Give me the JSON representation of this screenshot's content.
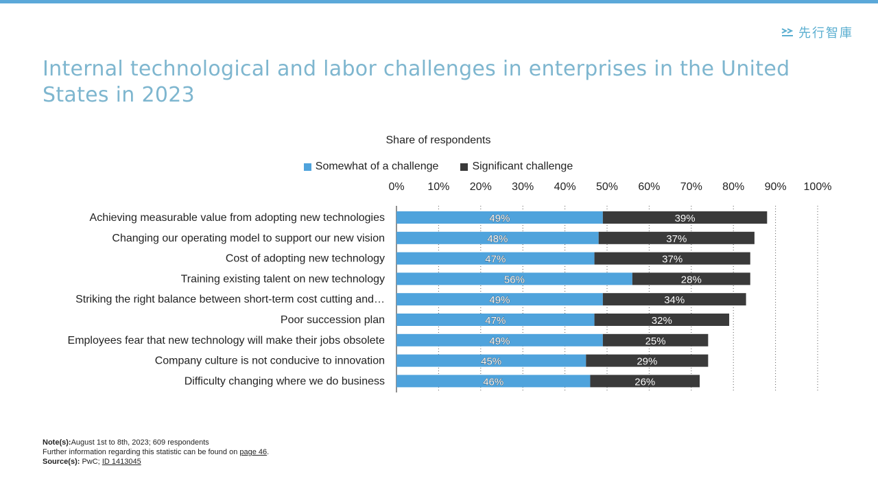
{
  "brand": {
    "logo_text": "先行智庫",
    "accent": "#5ba8d9"
  },
  "title": "Internal technological and labor challenges in enterprises in the United States in 2023",
  "chart_data": {
    "type": "bar",
    "orientation": "horizontal",
    "stacked": true,
    "title": "Share of respondents",
    "xlim": [
      0,
      100
    ],
    "x_ticks": [
      "0%",
      "10%",
      "20%",
      "30%",
      "40%",
      "50%",
      "60%",
      "70%",
      "80%",
      "90%",
      "100%"
    ],
    "grid": "vertical dotted",
    "legend_position": "top",
    "categories": [
      "Achieving measurable value from adopting new technologies",
      "Changing our operating model to support our new vision",
      "Cost of adopting new technology",
      "Training existing talent on new technology",
      "Striking the right balance between short-term cost cutting and…",
      "Poor succession plan",
      "Employees fear that new technology will make their jobs obsolete",
      "Company culture is not conducive to innovation",
      "Difficulty changing where we do business"
    ],
    "series": [
      {
        "name": "Somewhat of a challenge",
        "color": "#4fa3dc",
        "values": [
          49,
          48,
          47,
          56,
          49,
          47,
          49,
          45,
          46
        ]
      },
      {
        "name": "Significant challenge",
        "color": "#3a3a3a",
        "values": [
          39,
          37,
          37,
          28,
          34,
          32,
          25,
          29,
          26
        ]
      }
    ]
  },
  "footer": {
    "notes_label": "Note(s):",
    "notes_text": "August 1st to 8th, 2023; 609 respondents",
    "further_text": "Further information regarding this statistic can be found on ",
    "page_link": "page 46",
    "period": ".",
    "source_label": "Source(s):",
    "source_text": " PwC; ",
    "source_id": "ID 1413045"
  }
}
